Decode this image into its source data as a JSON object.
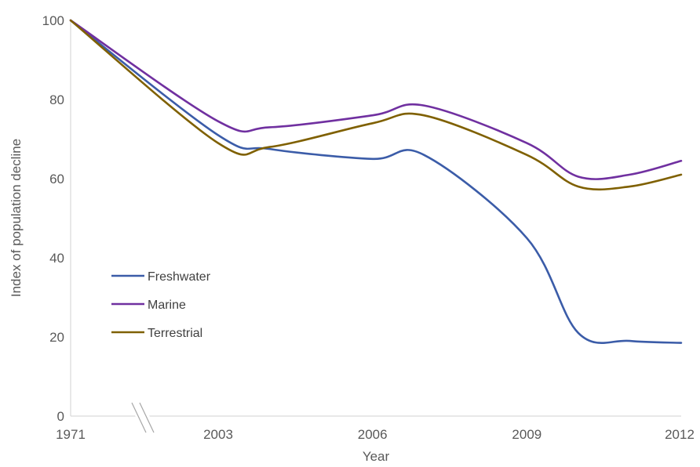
{
  "chart_data": {
    "type": "line",
    "title": "",
    "xlabel": "Year",
    "ylabel": "Index of population decline",
    "x": [
      "1971",
      "2003",
      "2006",
      "2009",
      "2012"
    ],
    "xaxis_break": "between 1971 and 2003",
    "ylim": [
      0,
      100
    ],
    "yticks": [
      "0",
      "20",
      "40",
      "60",
      "80",
      "100"
    ],
    "grid": false,
    "legend_position": "lower-left",
    "series": [
      {
        "name": "Freshwater",
        "color": "#3b5ca8",
        "points": [
          [
            "1971",
            100
          ],
          [
            "2003",
            71
          ],
          [
            "2004",
            67.5
          ],
          [
            "2006",
            65
          ],
          [
            "2007",
            66
          ],
          [
            "2009",
            45
          ],
          [
            "2010",
            21
          ],
          [
            "2011",
            19
          ],
          [
            "2012",
            18.5
          ]
        ]
      },
      {
        "name": "Marine",
        "color": "#7030a0",
        "points": [
          [
            "1971",
            100
          ],
          [
            "2003",
            74.5
          ],
          [
            "2004",
            73
          ],
          [
            "2006",
            76
          ],
          [
            "2007",
            78.5
          ],
          [
            "2009",
            69
          ],
          [
            "2010",
            60.5
          ],
          [
            "2011",
            61
          ],
          [
            "2012",
            64.5
          ]
        ]
      },
      {
        "name": "Terrestrial",
        "color": "#7f6000",
        "points": [
          [
            "1971",
            100
          ],
          [
            "2003",
            69
          ],
          [
            "2004",
            68
          ],
          [
            "2006",
            74
          ],
          [
            "2007",
            76
          ],
          [
            "2009",
            66
          ],
          [
            "2010",
            58
          ],
          [
            "2011",
            58
          ],
          [
            "2012",
            61
          ]
        ]
      }
    ]
  }
}
